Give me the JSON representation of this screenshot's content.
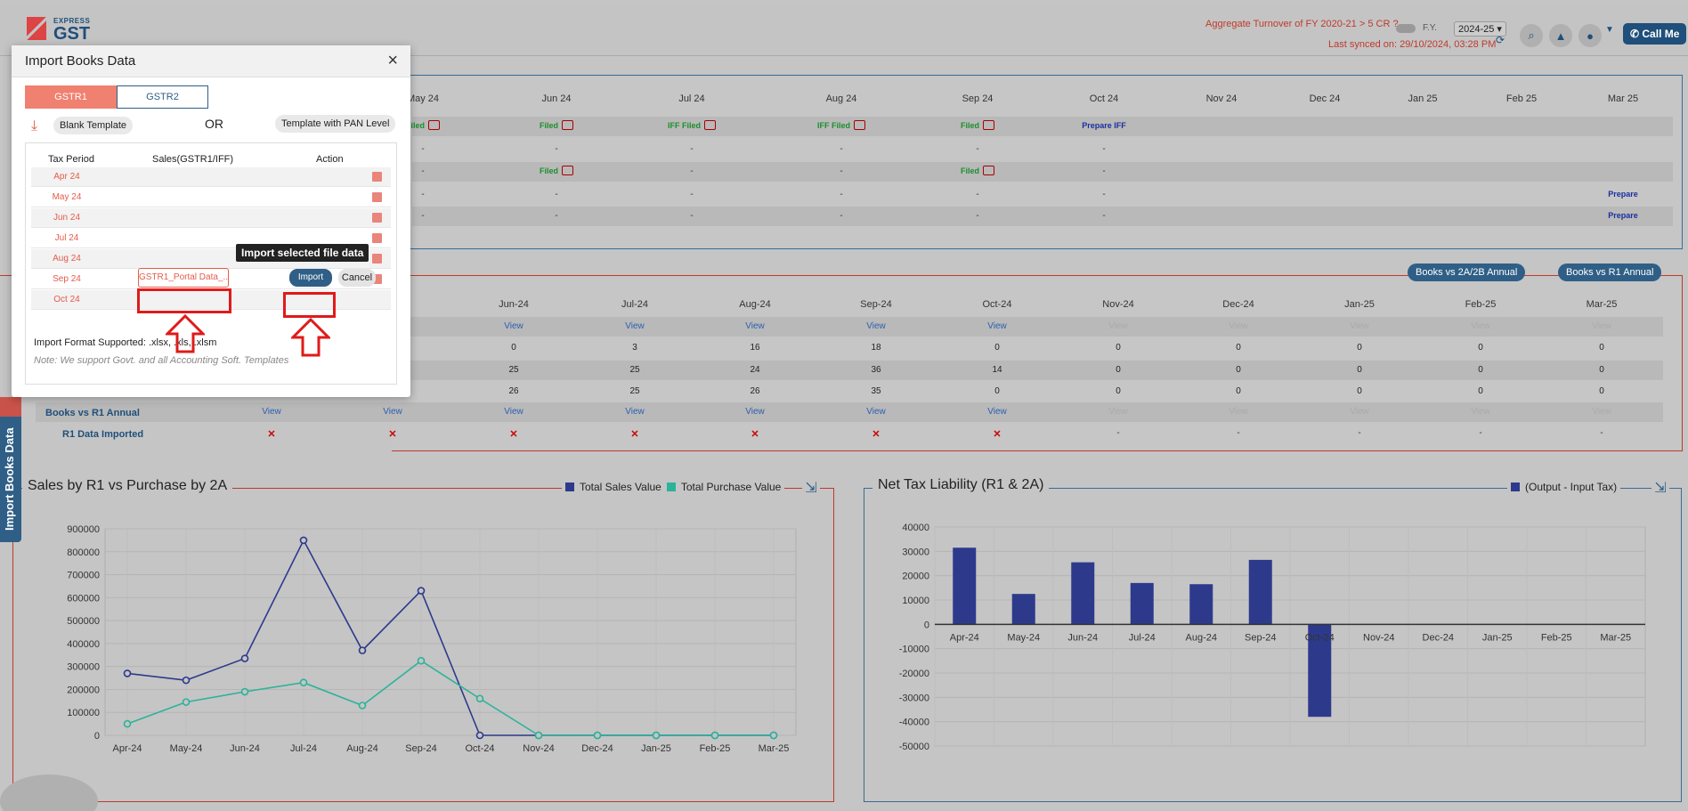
{
  "header": {
    "logo_small": "EXPRESS",
    "logo_big": "GST",
    "aggregate_text": "Aggregate Turnover of FY 2020-21 > 5 CR ?",
    "fy_label": "F.Y.",
    "fy_value": "2024-25",
    "last_synced": "Last synced on: 29/10/2024, 03:28 PM",
    "call_me": "Call Me",
    "icons": [
      "search-icon",
      "bell-icon",
      "user-icon",
      "chevron-down-icon",
      "phone-icon"
    ]
  },
  "status_table": {
    "months": [
      "May 24",
      "Jun 24",
      "Jul 24",
      "Aug 24",
      "Sep 24",
      "Oct 24",
      "Nov 24",
      "Dec 24",
      "Jan 25",
      "Feb 25",
      "Mar 25"
    ],
    "rows": [
      [
        "Filed",
        "Filed",
        "IFF Filed",
        "IFF Filed",
        "Filed",
        "Prepare IFF",
        "",
        "",
        "",
        "",
        ""
      ],
      [
        "-",
        "-",
        "-",
        "-",
        "-",
        "-",
        "",
        "",
        "",
        "",
        ""
      ],
      [
        "-",
        "Filed",
        "-",
        "-",
        "Filed",
        "-",
        "",
        "",
        "",
        "",
        ""
      ],
      [
        "-",
        "-",
        "-",
        "-",
        "-",
        "-",
        "",
        "",
        "",
        "",
        "Prepare"
      ],
      [
        "-",
        "-",
        "-",
        "-",
        "-",
        "-",
        "",
        "",
        "",
        "",
        "Prepare"
      ]
    ]
  },
  "books_table": {
    "buttons": [
      "Books vs 2A/2B Annual",
      "Books vs R1 Annual"
    ],
    "months": [
      "Jun-24",
      "Jul-24",
      "Aug-24",
      "Sep-24",
      "Oct-24",
      "Nov-24",
      "Dec-24",
      "Jan-25",
      "Feb-25",
      "Mar-25"
    ],
    "view_row": [
      "View",
      "View",
      "View",
      "View",
      "View",
      "View",
      "View",
      "View",
      "View",
      "View"
    ],
    "row1": [
      "0",
      "3",
      "16",
      "18",
      "0",
      "0",
      "0",
      "0",
      "0",
      "0"
    ],
    "row2": [
      "25",
      "25",
      "24",
      "36",
      "14",
      "0",
      "0",
      "0",
      "0",
      "0"
    ],
    "row3": [
      "26",
      "25",
      "26",
      "35",
      "0",
      "0",
      "0",
      "0",
      "0",
      "0"
    ],
    "books_vs_r1_label": "Books vs R1 Annual",
    "books_vs_r1": [
      "View",
      "View",
      "View",
      "View",
      "View",
      "View",
      "View",
      "View",
      "View",
      "View",
      "View",
      "View"
    ],
    "r1_imported_label": "R1 Data Imported",
    "r1_imported": [
      "✕",
      "✕",
      "✕",
      "✕",
      "✕",
      "✕",
      "✕",
      "-",
      "-",
      "-",
      "-",
      "-"
    ]
  },
  "side_tab": {
    "label": "Import Books Data"
  },
  "modal": {
    "title": "Import Books Data",
    "close": "×",
    "tabs": [
      "GSTR1",
      "GSTR2"
    ],
    "blank_template": "Blank Template",
    "or": "OR",
    "pan_template": "Template with PAN Level",
    "col_period": "Tax Period",
    "col_sales": "Sales(GSTR1/IFF)",
    "col_action": "Action",
    "periods": [
      "Apr 24",
      "May 24",
      "Jun 24",
      "Jul 24",
      "Aug 24",
      "Sep 24",
      "Oct 24"
    ],
    "file_name": "GSTR1_Portal Data_...",
    "tooltip": "Import selected file data",
    "import": "Import",
    "cancel": "Cancel",
    "format": "Import Format Supported: .xlsx, .xls, .xlsm",
    "note": "Note: We support Govt. and all Accounting Soft. Templates"
  },
  "colors": {
    "accent": "#2f5f86",
    "gstr1_tab": "#f08070",
    "highlight": "#e01a1a",
    "sales_series": "#2d3a8c",
    "purchase_series": "#2bb39a"
  },
  "chart_data": [
    {
      "type": "line",
      "title": "Sales by R1 vs Purchase by 2A",
      "categories": [
        "Apr-24",
        "May-24",
        "Jun-24",
        "Jul-24",
        "Aug-24",
        "Sep-24",
        "Oct-24",
        "Nov-24",
        "Dec-24",
        "Jan-25",
        "Feb-25",
        "Mar-25"
      ],
      "series": [
        {
          "name": "Total Sales Value",
          "values": [
            270000,
            240000,
            335000,
            850000,
            370000,
            630000,
            0,
            0,
            0,
            0,
            0,
            0
          ]
        },
        {
          "name": "Total Purchase Value",
          "values": [
            50000,
            145000,
            190000,
            230000,
            130000,
            325000,
            160000,
            0,
            0,
            0,
            0,
            0
          ]
        }
      ],
      "ylim": [
        0,
        900000
      ],
      "yticks": [
        "900000",
        "800000",
        "700000",
        "600000",
        "500000",
        "400000",
        "300000",
        "200000",
        "100000",
        "0"
      ],
      "grid": true,
      "legend": "top-right"
    },
    {
      "type": "bar",
      "title": "Net Tax Liability (R1 & 2A)",
      "categories": [
        "Apr-24",
        "May-24",
        "Jun-24",
        "Jul-24",
        "Aug-24",
        "Sep-24",
        "Oct-24",
        "Nov-24",
        "Dec-24",
        "Jan-25",
        "Feb-25",
        "Mar-25"
      ],
      "series": [
        {
          "name": "(Output - Input Tax)",
          "values": [
            31500,
            12500,
            25500,
            17000,
            16500,
            26500,
            -38000,
            0,
            0,
            0,
            0,
            0
          ]
        }
      ],
      "ylim": [
        -50000,
        40000
      ],
      "yticks": [
        "40000",
        "30000",
        "20000",
        "10000",
        "0",
        "-10000",
        "-20000",
        "-30000",
        "-40000",
        "-50000"
      ],
      "grid": true,
      "legend": "top-right"
    }
  ]
}
